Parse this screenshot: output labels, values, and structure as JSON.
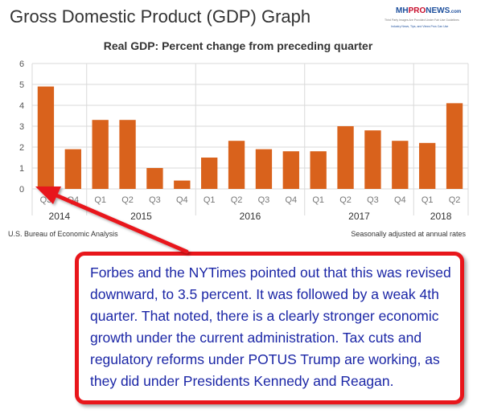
{
  "header": {
    "title": "Gross Domestic Product (GDP) Graph"
  },
  "logo": {
    "mh": "MH",
    "pro": "PRO",
    "news": "NEWS",
    "com": ".com",
    "tagline": "Third Party Images Are Provided Under Fair Use Guidelines",
    "tagline2": "Industry News, Tips, and Views Pros Can Use"
  },
  "chart_data": {
    "type": "bar",
    "title": "Real GDP:  Percent change from preceding quarter",
    "categories": [
      "Q3",
      "Q4",
      "Q1",
      "Q2",
      "Q3",
      "Q4",
      "Q1",
      "Q2",
      "Q3",
      "Q4",
      "Q1",
      "Q2",
      "Q3",
      "Q4",
      "Q1",
      "Q2"
    ],
    "years": [
      {
        "label": "2014",
        "from": 0,
        "to": 1
      },
      {
        "label": "2015",
        "from": 2,
        "to": 5
      },
      {
        "label": "2016",
        "from": 6,
        "to": 9
      },
      {
        "label": "2017",
        "from": 10,
        "to": 13
      },
      {
        "label": "2018",
        "from": 14,
        "to": 15
      }
    ],
    "values": [
      4.9,
      1.9,
      3.3,
      3.3,
      1.0,
      0.4,
      1.5,
      2.3,
      1.9,
      1.8,
      1.8,
      3.0,
      2.8,
      2.3,
      2.2,
      4.1
    ],
    "ylim": [
      0,
      6
    ],
    "yticks": [
      0,
      1,
      2,
      3,
      4,
      5,
      6
    ],
    "grid": true,
    "bar_color": "#d9621c"
  },
  "footer": {
    "source": "U.S. Bureau of Economic Analysis",
    "note": "Seasonally adjusted at annual rates"
  },
  "annotation": {
    "text": "Forbes and the NYTimes pointed out that this was revised downward, to 3.5 percent.  It was followed by a weak 4th quarter.  That noted, there is a clearly stronger economic growth under the current administration.  Tax cuts and regulatory reforms under POTUS Trump are working, as they did under Presidents Kennedy and Reagan.",
    "border_color": "#e8161b",
    "text_color": "#1b26a6"
  }
}
